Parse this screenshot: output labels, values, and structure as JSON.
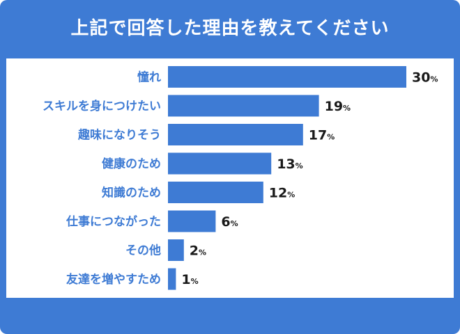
{
  "title": "上記で回答した理由を教えてください",
  "colors": {
    "accent": "#3e7bd4",
    "bar": "#3e7bd4",
    "panel": "#ffffff",
    "text": "#1a1a1a"
  },
  "chart_data": {
    "type": "bar",
    "orientation": "horizontal",
    "categories": [
      "憧れ",
      "スキルを身につけたい",
      "趣味になりそう",
      "健康のため",
      "知識のため",
      "仕事につながった",
      "その他",
      "友達を増やすため"
    ],
    "values": [
      30,
      19,
      17,
      13,
      12,
      6,
      2,
      1
    ],
    "unit": "%",
    "title": "上記で回答した理由を教えてください",
    "xlabel": "",
    "ylabel": ""
  }
}
